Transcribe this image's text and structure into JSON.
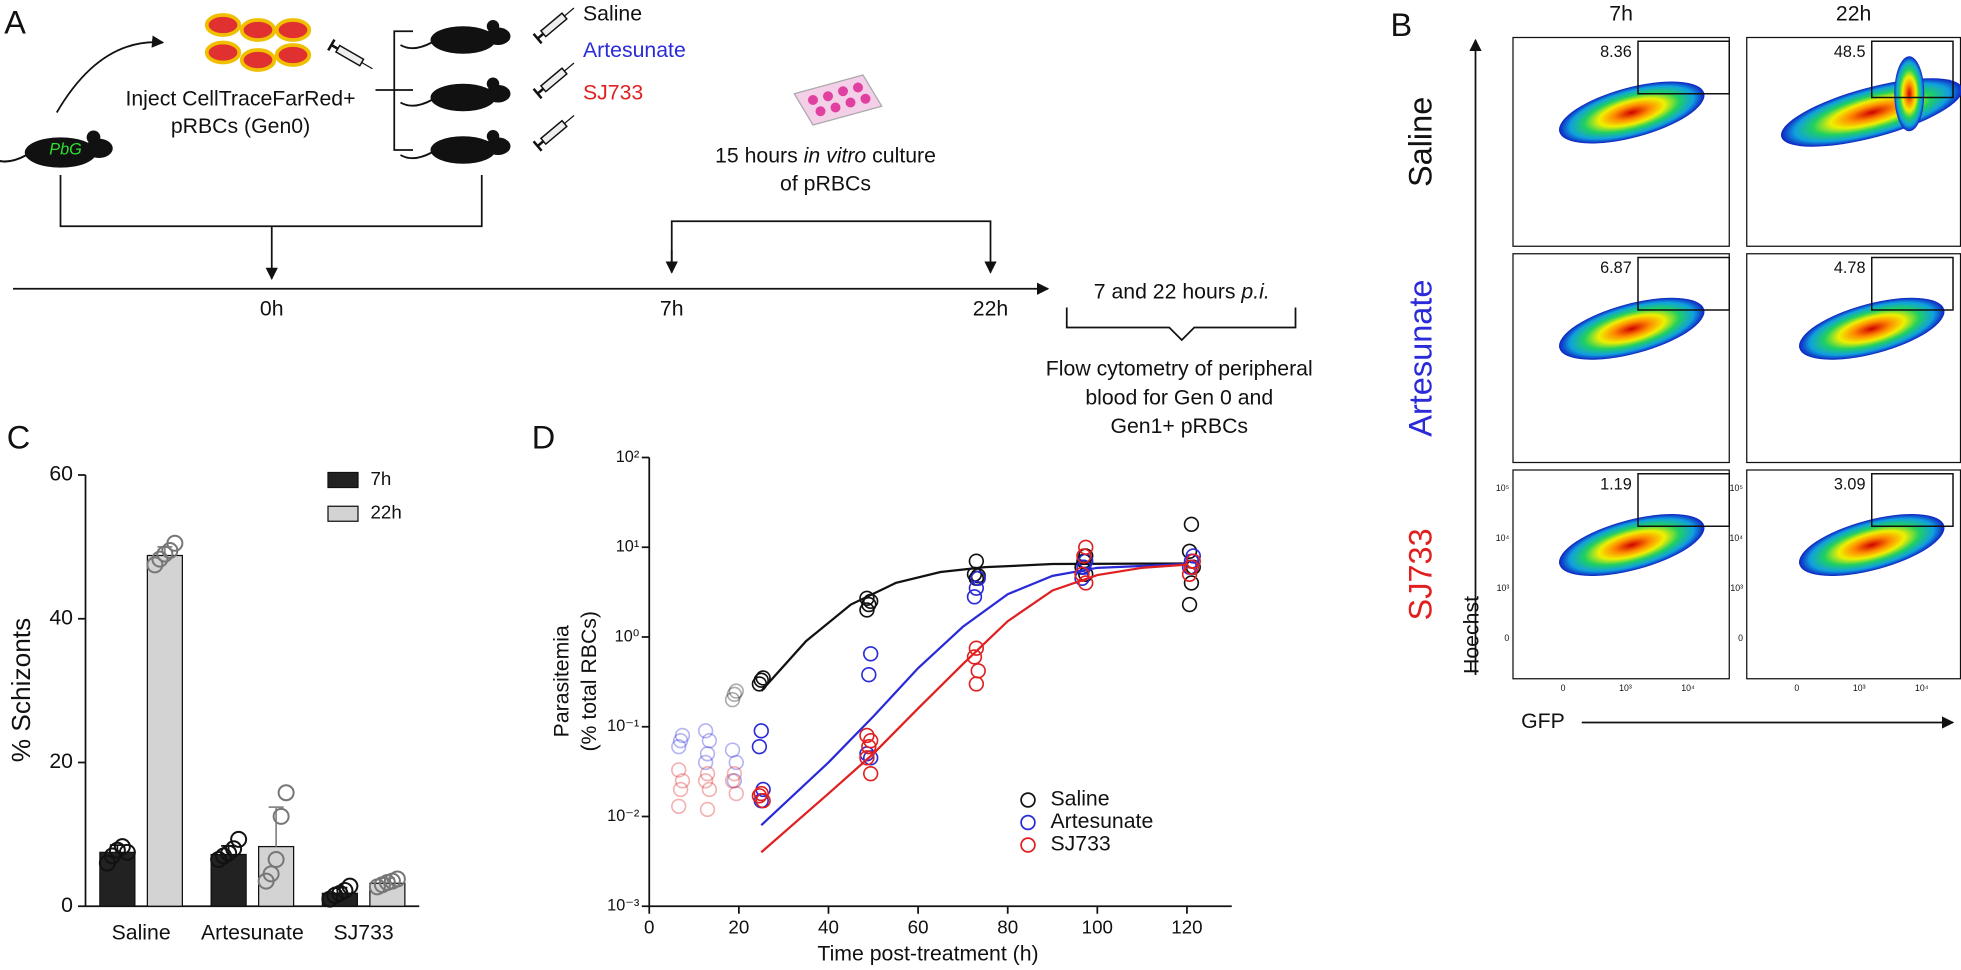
{
  "panel_a": {
    "label": "A",
    "inject": [
      "Inject CellTraceFarRed+",
      "pRBCs (Gen0)"
    ],
    "mouse": "PbG",
    "treatments": [
      "Saline",
      "Artesunate",
      "SJ733"
    ],
    "culture": [
      [
        "15 hours ",
        "in vitro",
        " culture"
      ],
      [
        "of pRBCs"
      ]
    ],
    "timepoints": [
      "0h",
      "7h",
      "22h"
    ],
    "sampling": [
      "7 and 22 hours ",
      "p.i."
    ],
    "flow": [
      "Flow cytometry of peripheral",
      "blood for Gen 0 and",
      "Gen1+ pRBCs"
    ]
  },
  "panel_b": {
    "label": "B",
    "columns": [
      "7h",
      "22h"
    ],
    "rows": [
      "Saline",
      "Artesunate",
      "SJ733"
    ],
    "gates": [
      [
        "8.36",
        "48.5"
      ],
      [
        "6.87",
        "4.78"
      ],
      [
        "1.19",
        "3.09"
      ]
    ],
    "y_axis": "Hoechst",
    "x_axis": "GFP",
    "x_tick_labels": [
      "0",
      "10³",
      "10⁴"
    ],
    "y_tick_labels": [
      "0",
      "10³",
      "10⁴",
      "10⁵"
    ]
  },
  "chart_data": [
    {
      "type": "bar",
      "label": "C",
      "ylabel": "% Schizonts",
      "categories": [
        "Saline",
        "Artesunate",
        "SJ733"
      ],
      "ylim": [
        0,
        60
      ],
      "yticks": [
        0,
        20,
        40,
        60
      ],
      "series": [
        {
          "name": "7h",
          "color": "#222222",
          "values": [
            7.5,
            7.2,
            1.8
          ],
          "errors": [
            1.0,
            1.2,
            0.8
          ],
          "points": [
            [
              6.0,
              7.0,
              7.8,
              8.3,
              7.5
            ],
            [
              6.5,
              7.0,
              7.4,
              8.0,
              9.3
            ],
            [
              1.0,
              1.5,
              1.8,
              2.2,
              2.8
            ]
          ]
        },
        {
          "name": "22h",
          "color": "#d3d3d3",
          "values": [
            48.8,
            8.3,
            3.2
          ],
          "errors": [
            1.2,
            5.5,
            0.7
          ],
          "points": [
            [
              47.5,
              48.3,
              49.0,
              49.5,
              50.5
            ],
            [
              3.5,
              4.5,
              6.5,
              12.5,
              15.8
            ],
            [
              2.7,
              3.0,
              3.3,
              3.5,
              3.8
            ]
          ]
        }
      ]
    },
    {
      "type": "scatter",
      "label": "D",
      "xlabel": "Time post-treatment (h)",
      "ylabel": [
        "Parasitemia",
        "(% total RBCs)"
      ],
      "xlim": [
        0,
        130
      ],
      "xticks": [
        0,
        20,
        40,
        60,
        80,
        100,
        120
      ],
      "ylim": [
        0.001,
        100
      ],
      "log_y": true,
      "yticks": [
        {
          "value": 100,
          "label": "10²"
        },
        {
          "value": 10,
          "label": "10¹"
        },
        {
          "value": 1,
          "label": "10⁰"
        },
        {
          "value": 0.1,
          "label": "10⁻¹"
        },
        {
          "value": 0.01,
          "label": "10⁻²"
        },
        {
          "value": 0.001,
          "label": "10⁻³"
        }
      ],
      "series": [
        {
          "name": "Saline",
          "color": "#111111",
          "x": [
            19,
            19,
            19,
            25,
            25,
            25,
            49,
            49,
            49,
            49,
            73,
            73,
            73,
            73,
            97,
            97,
            97,
            97,
            121,
            121,
            121,
            121,
            121
          ],
          "values": [
            0.2,
            0.23,
            0.25,
            0.3,
            0.33,
            0.35,
            2.0,
            2.3,
            2.5,
            2.7,
            4.5,
            4.8,
            5.0,
            7.0,
            5.0,
            6.0,
            7.0,
            8.0,
            2.3,
            4.0,
            6.0,
            9.0,
            18
          ],
          "fit": {
            "x": [
              25,
              35,
              45,
              55,
              65,
              75,
              90,
              120
            ],
            "values": [
              0.25,
              0.9,
              2.3,
              4.0,
              5.3,
              6.0,
              6.5,
              6.6
            ]
          }
        },
        {
          "name": "Artesunate",
          "color": "#2a2ad8",
          "x": [
            7,
            7,
            7,
            13,
            13,
            13,
            13,
            19,
            19,
            19,
            25,
            25,
            25,
            25,
            49,
            49,
            49,
            49,
            73,
            73,
            73,
            97,
            97,
            97,
            121,
            121,
            121
          ],
          "values": [
            0.06,
            0.07,
            0.08,
            0.04,
            0.05,
            0.07,
            0.09,
            0.025,
            0.04,
            0.055,
            0.015,
            0.02,
            0.06,
            0.09,
            0.045,
            0.05,
            0.38,
            0.65,
            2.8,
            3.5,
            4.5,
            4.5,
            6.0,
            7.0,
            6.0,
            7.0,
            8.0
          ],
          "fit": {
            "x": [
              25,
              40,
              50,
              60,
              70,
              80,
              90,
              100,
              120
            ],
            "values": [
              0.008,
              0.04,
              0.13,
              0.45,
              1.3,
              3.0,
              4.8,
              5.9,
              6.5
            ]
          }
        },
        {
          "name": "SJ733",
          "color": "#e02020",
          "x": [
            7,
            7,
            7,
            7,
            13,
            13,
            13,
            13,
            19,
            19,
            19,
            25,
            25,
            25,
            49,
            49,
            49,
            49,
            49,
            73,
            73,
            73,
            73,
            97,
            97,
            97,
            97,
            121,
            121,
            121
          ],
          "values": [
            0.013,
            0.02,
            0.025,
            0.033,
            0.012,
            0.02,
            0.025,
            0.03,
            0.018,
            0.025,
            0.03,
            0.015,
            0.017,
            0.018,
            0.03,
            0.045,
            0.06,
            0.07,
            0.08,
            0.3,
            0.42,
            0.6,
            0.75,
            4.0,
            5.0,
            8.0,
            10,
            5.0,
            6.0,
            7.0
          ],
          "fit": {
            "x": [
              25,
              40,
              50,
              60,
              70,
              80,
              90,
              100,
              110,
              120
            ],
            "values": [
              0.004,
              0.018,
              0.05,
              0.16,
              0.5,
              1.5,
              3.3,
              4.9,
              5.9,
              6.4
            ]
          }
        }
      ]
    }
  ]
}
